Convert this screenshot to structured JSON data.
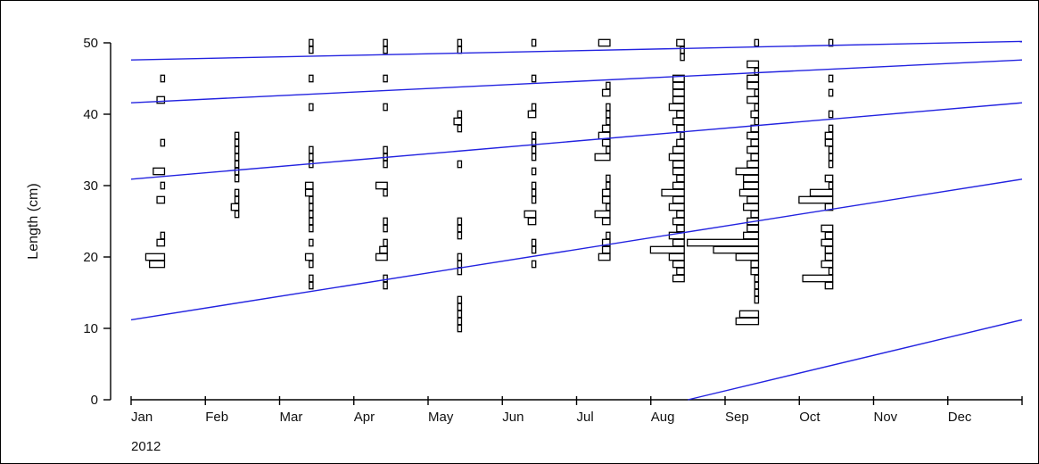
{
  "chart_data": {
    "type": "histogram-timeseries",
    "title": "",
    "ylabel": "Length (cm)",
    "xlabel": "",
    "year_label": "2012",
    "ylim": [
      0,
      50
    ],
    "y_ticks": [
      "0",
      "10",
      "20",
      "30",
      "40",
      "50"
    ],
    "x_ticks": [
      "Jan",
      "Feb",
      "Mar",
      "Apr",
      "May",
      "Jun",
      "Jul",
      "Aug",
      "Sep",
      "Oct",
      "Nov",
      "Dec"
    ],
    "x_range_months": [
      0,
      12
    ],
    "colors": {
      "growth_curve": "#2323e0",
      "bars": "#000000"
    },
    "growth_curves": [
      {
        "name": "",
        "points": [
          [
            0,
            47.6
          ],
          [
            12,
            50.2
          ]
        ]
      },
      {
        "name": "",
        "points": [
          [
            0,
            41.6
          ],
          [
            12,
            47.6
          ]
        ]
      },
      {
        "name": "",
        "points": [
          [
            0,
            30.9
          ],
          [
            12,
            41.6
          ]
        ]
      },
      {
        "name": "",
        "points": [
          [
            0,
            11.2
          ],
          [
            12,
            30.9
          ]
        ]
      },
      {
        "name": "",
        "points": [
          [
            7.5,
            0
          ],
          [
            12,
            11.2
          ]
        ]
      }
    ],
    "samples": [
      {
        "month": 0.45,
        "bins": [
          [
            45,
            1
          ],
          [
            42,
            2
          ],
          [
            36,
            1
          ],
          [
            32,
            3
          ],
          [
            30,
            1
          ],
          [
            28,
            2
          ],
          [
            23,
            1
          ],
          [
            22,
            2
          ],
          [
            20,
            5
          ],
          [
            19,
            4
          ]
        ]
      },
      {
        "month": 1.45,
        "bins": [
          [
            37,
            1
          ],
          [
            36,
            1
          ],
          [
            35,
            1
          ],
          [
            34,
            1
          ],
          [
            33,
            1
          ],
          [
            32,
            1
          ],
          [
            31,
            1
          ],
          [
            29,
            1
          ],
          [
            28,
            1
          ],
          [
            27,
            2
          ],
          [
            26,
            1
          ]
        ]
      },
      {
        "month": 2.45,
        "bins": [
          [
            50,
            1
          ],
          [
            49,
            1
          ],
          [
            45,
            1
          ],
          [
            41,
            1
          ],
          [
            35,
            1
          ],
          [
            34,
            1
          ],
          [
            33,
            1
          ],
          [
            30,
            2
          ],
          [
            29,
            2
          ],
          [
            28,
            1
          ],
          [
            27,
            1
          ],
          [
            26,
            1
          ],
          [
            25,
            1
          ],
          [
            24,
            1
          ],
          [
            22,
            1
          ],
          [
            20,
            2
          ],
          [
            19,
            1
          ],
          [
            17,
            1
          ],
          [
            16,
            1
          ]
        ]
      },
      {
        "month": 3.45,
        "bins": [
          [
            50,
            1
          ],
          [
            49,
            1
          ],
          [
            45,
            1
          ],
          [
            41,
            1
          ],
          [
            35,
            1
          ],
          [
            34,
            1
          ],
          [
            33,
            1
          ],
          [
            30,
            3
          ],
          [
            29,
            1
          ],
          [
            25,
            1
          ],
          [
            24,
            1
          ],
          [
            22,
            1
          ],
          [
            21,
            2
          ],
          [
            20,
            3
          ],
          [
            17,
            1
          ],
          [
            16,
            1
          ]
        ]
      },
      {
        "month": 4.45,
        "bins": [
          [
            50,
            1
          ],
          [
            49,
            1
          ],
          [
            40,
            1
          ],
          [
            39,
            2
          ],
          [
            38,
            1
          ],
          [
            33,
            1
          ],
          [
            25,
            1
          ],
          [
            24,
            1
          ],
          [
            23,
            1
          ],
          [
            20,
            1
          ],
          [
            19,
            1
          ],
          [
            18,
            1
          ],
          [
            14,
            1
          ],
          [
            13,
            1
          ],
          [
            12,
            1
          ],
          [
            11,
            1
          ],
          [
            10,
            1
          ]
        ]
      },
      {
        "month": 5.45,
        "bins": [
          [
            50,
            1
          ],
          [
            45,
            1
          ],
          [
            41,
            1
          ],
          [
            40,
            2
          ],
          [
            37,
            1
          ],
          [
            36,
            1
          ],
          [
            35,
            1
          ],
          [
            34,
            1
          ],
          [
            32,
            1
          ],
          [
            30,
            1
          ],
          [
            29,
            1
          ],
          [
            28,
            1
          ],
          [
            26,
            3
          ],
          [
            25,
            2
          ],
          [
            22,
            1
          ],
          [
            21,
            1
          ],
          [
            19,
            1
          ]
        ]
      },
      {
        "month": 6.45,
        "bins": [
          [
            50,
            3
          ],
          [
            44,
            1
          ],
          [
            43,
            2
          ],
          [
            41,
            1
          ],
          [
            40,
            1
          ],
          [
            39,
            1
          ],
          [
            38,
            2
          ],
          [
            37,
            3
          ],
          [
            36,
            2
          ],
          [
            35,
            1
          ],
          [
            34,
            4
          ],
          [
            31,
            1
          ],
          [
            30,
            1
          ],
          [
            29,
            2
          ],
          [
            28,
            2
          ],
          [
            27,
            1
          ],
          [
            26,
            4
          ],
          [
            25,
            2
          ],
          [
            23,
            1
          ],
          [
            22,
            2
          ],
          [
            21,
            2
          ],
          [
            20,
            3
          ]
        ]
      },
      {
        "month": 7.45,
        "bins": [
          [
            50,
            2
          ],
          [
            49,
            1
          ],
          [
            48,
            1
          ],
          [
            45,
            3
          ],
          [
            44,
            3
          ],
          [
            43,
            3
          ],
          [
            42,
            3
          ],
          [
            41,
            4
          ],
          [
            40,
            2
          ],
          [
            39,
            3
          ],
          [
            38,
            2
          ],
          [
            37,
            1
          ],
          [
            36,
            2
          ],
          [
            35,
            3
          ],
          [
            34,
            4
          ],
          [
            33,
            3
          ],
          [
            32,
            3
          ],
          [
            31,
            2
          ],
          [
            30,
            3
          ],
          [
            29,
            6
          ],
          [
            28,
            3
          ],
          [
            27,
            4
          ],
          [
            26,
            2
          ],
          [
            25,
            3
          ],
          [
            24,
            2
          ],
          [
            23,
            4
          ],
          [
            22,
            3
          ],
          [
            21,
            9
          ],
          [
            20,
            4
          ],
          [
            19,
            3
          ],
          [
            18,
            2
          ],
          [
            17,
            3
          ]
        ]
      },
      {
        "month": 8.45,
        "bins": [
          [
            50,
            1
          ],
          [
            47,
            3
          ],
          [
            46,
            1
          ],
          [
            45,
            3
          ],
          [
            44,
            3
          ],
          [
            43,
            1
          ],
          [
            42,
            3
          ],
          [
            41,
            1
          ],
          [
            40,
            2
          ],
          [
            39,
            1
          ],
          [
            38,
            2
          ],
          [
            37,
            3
          ],
          [
            36,
            2
          ],
          [
            35,
            3
          ],
          [
            34,
            2
          ],
          [
            33,
            3
          ],
          [
            32,
            6
          ],
          [
            31,
            4
          ],
          [
            30,
            4
          ],
          [
            29,
            5
          ],
          [
            28,
            3
          ],
          [
            27,
            4
          ],
          [
            26,
            2
          ],
          [
            25,
            3
          ],
          [
            24,
            3
          ],
          [
            23,
            4
          ],
          [
            22,
            19
          ],
          [
            21,
            12
          ],
          [
            20,
            6
          ],
          [
            19,
            2
          ],
          [
            18,
            2
          ],
          [
            17,
            1
          ],
          [
            16,
            1
          ],
          [
            15,
            1
          ],
          [
            14,
            1
          ],
          [
            12,
            5
          ],
          [
            11,
            6
          ]
        ]
      },
      {
        "month": 9.45,
        "bins": [
          [
            50,
            1
          ],
          [
            45,
            1
          ],
          [
            43,
            1
          ],
          [
            40,
            1
          ],
          [
            38,
            1
          ],
          [
            37,
            2
          ],
          [
            36,
            2
          ],
          [
            35,
            1
          ],
          [
            34,
            1
          ],
          [
            33,
            1
          ],
          [
            31,
            2
          ],
          [
            30,
            1
          ],
          [
            29,
            6
          ],
          [
            28,
            9
          ],
          [
            27,
            2
          ],
          [
            24,
            3
          ],
          [
            23,
            2
          ],
          [
            22,
            3
          ],
          [
            21,
            2
          ],
          [
            20,
            2
          ],
          [
            19,
            3
          ],
          [
            18,
            1
          ],
          [
            17,
            8
          ],
          [
            16,
            2
          ]
        ]
      }
    ]
  }
}
